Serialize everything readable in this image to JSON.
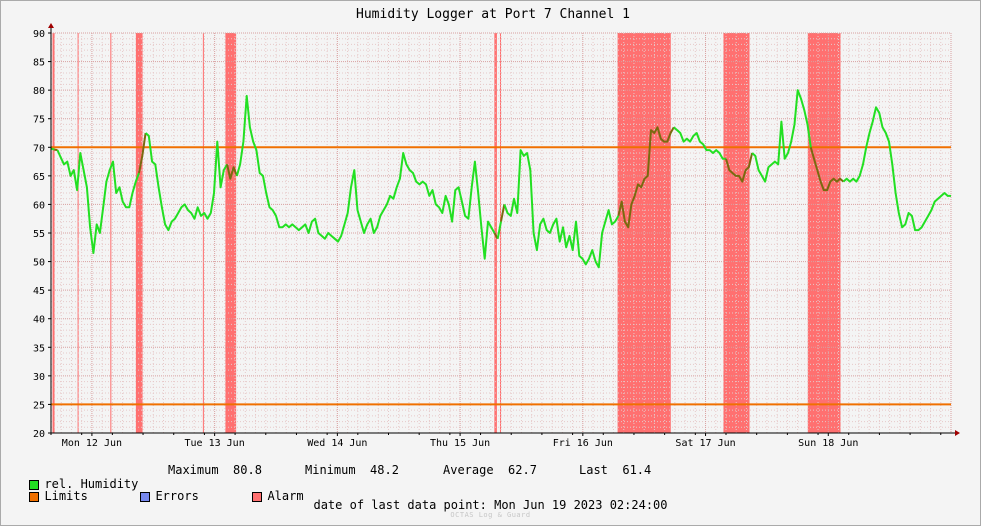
{
  "chart_data": {
    "type": "line",
    "title": "Humidity Logger at Port 7 Channel 1",
    "ylim": [
      20,
      90
    ],
    "y_ticks": [
      20,
      25,
      30,
      35,
      40,
      45,
      50,
      55,
      60,
      65,
      70,
      75,
      80,
      85,
      90
    ],
    "x_range_hours": [
      0,
      176
    ],
    "x_ticks": [
      {
        "label": "Mon 12 Jun",
        "h": 8
      },
      {
        "label": "Tue 13 Jun",
        "h": 32
      },
      {
        "label": "Wed 14 Jun",
        "h": 56
      },
      {
        "label": "Thu 15 Jun",
        "h": 80
      },
      {
        "label": "Fri 16 Jun",
        "h": 104
      },
      {
        "label": "Sat 17 Jun",
        "h": 128
      },
      {
        "label": "Sun 18 Jun",
        "h": 152
      }
    ],
    "grid": true,
    "limits": [
      25,
      70
    ],
    "alarm_periods": [
      [
        0.3,
        0.7
      ],
      [
        5.2,
        5.4
      ],
      [
        11.6,
        11.8
      ],
      [
        16.6,
        17.9
      ],
      [
        29.7,
        29.9
      ],
      [
        34.1,
        36.2
      ],
      [
        86.7,
        87.2
      ],
      [
        87.8,
        88.0
      ],
      [
        110.8,
        121.2
      ],
      [
        131.5,
        136.6
      ],
      [
        148.0,
        154.4
      ]
    ],
    "series": [
      {
        "name": "rel. Humidity",
        "color": "#22e022",
        "alarm_color": "#7a6a10",
        "points": [
          [
            0,
            69.8
          ],
          [
            1,
            69.6
          ],
          [
            2,
            69.5
          ],
          [
            3,
            68.2
          ],
          [
            4,
            67.0
          ],
          [
            5,
            67.5
          ],
          [
            6,
            65.0
          ],
          [
            7,
            66.0
          ],
          [
            8,
            62.5
          ],
          [
            9,
            69.0
          ],
          [
            10,
            66.0
          ],
          [
            11,
            63.0
          ],
          [
            12,
            56.0
          ],
          [
            13,
            51.5
          ],
          [
            14,
            56.5
          ],
          [
            15,
            55.0
          ],
          [
            16,
            59.5
          ],
          [
            17,
            64.0
          ],
          [
            18,
            66.0
          ],
          [
            19,
            67.5
          ],
          [
            20,
            62.0
          ],
          [
            21,
            63.0
          ],
          [
            22,
            60.5
          ],
          [
            23,
            59.5
          ],
          [
            24,
            59.5
          ],
          [
            25,
            62.0
          ],
          [
            26,
            64.0
          ],
          [
            27,
            65.5
          ],
          [
            28,
            68.5
          ],
          [
            29,
            72.5
          ],
          [
            30,
            72.0
          ],
          [
            31,
            67.5
          ],
          [
            32,
            67.0
          ],
          [
            33,
            63.0
          ],
          [
            34,
            59.5
          ],
          [
            35,
            56.5
          ],
          [
            36,
            55.5
          ],
          [
            37,
            57.0
          ],
          [
            38,
            57.5
          ],
          [
            39,
            58.5
          ],
          [
            40,
            59.5
          ],
          [
            41,
            60.0
          ],
          [
            42,
            59.0
          ],
          [
            43,
            58.5
          ],
          [
            44,
            57.5
          ],
          [
            45,
            59.5
          ],
          [
            46,
            58.0
          ],
          [
            47,
            58.5
          ],
          [
            48,
            57.5
          ],
          [
            49,
            58.5
          ],
          [
            50,
            62.0
          ],
          [
            51,
            71.0
          ],
          [
            52,
            63.0
          ],
          [
            53,
            66.0
          ],
          [
            54,
            67.0
          ],
          [
            55,
            64.5
          ],
          [
            56,
            66.5
          ],
          [
            57,
            65.0
          ],
          [
            58,
            67.0
          ],
          [
            59,
            71.0
          ],
          [
            60,
            79.0
          ],
          [
            61,
            73.5
          ],
          [
            62,
            71.0
          ],
          [
            63,
            69.5
          ],
          [
            64,
            65.5
          ],
          [
            65,
            65.0
          ],
          [
            66,
            62.0
          ],
          [
            67,
            59.5
          ],
          [
            68,
            59.0
          ],
          [
            69,
            58.0
          ],
          [
            70,
            56.0
          ],
          [
            71,
            56.0
          ],
          [
            72,
            56.5
          ],
          [
            73,
            56.0
          ],
          [
            74,
            56.5
          ],
          [
            75,
            56.0
          ],
          [
            76,
            55.5
          ],
          [
            77,
            56.0
          ],
          [
            78,
            56.5
          ],
          [
            79,
            55.0
          ],
          [
            80,
            57.0
          ],
          [
            81,
            57.5
          ],
          [
            82,
            55.0
          ],
          [
            83,
            54.5
          ],
          [
            84,
            54.0
          ],
          [
            85,
            55.0
          ],
          [
            86,
            54.5
          ],
          [
            87,
            54.0
          ],
          [
            88,
            53.5
          ],
          [
            89,
            54.5
          ],
          [
            90,
            56.5
          ],
          [
            91,
            58.5
          ],
          [
            92,
            63.0
          ],
          [
            93,
            66.0
          ],
          [
            94,
            59.0
          ],
          [
            95,
            57.0
          ],
          [
            96,
            55.0
          ],
          [
            97,
            56.5
          ],
          [
            98,
            57.5
          ],
          [
            99,
            55.0
          ],
          [
            100,
            56.0
          ],
          [
            101,
            58.0
          ],
          [
            102,
            59.0
          ],
          [
            103,
            60.0
          ],
          [
            104,
            61.5
          ],
          [
            105,
            61.0
          ],
          [
            106,
            63.0
          ],
          [
            107,
            64.5
          ],
          [
            108,
            69.0
          ],
          [
            109,
            67.0
          ],
          [
            110,
            66.0
          ],
          [
            111,
            65.5
          ],
          [
            112,
            64.0
          ],
          [
            113,
            63.5
          ],
          [
            114,
            64.0
          ],
          [
            115,
            63.5
          ],
          [
            116,
            61.5
          ],
          [
            117,
            62.5
          ],
          [
            118,
            60.0
          ],
          [
            119,
            59.5
          ],
          [
            120,
            58.5
          ],
          [
            121,
            61.5
          ],
          [
            122,
            60.0
          ],
          [
            123,
            57.0
          ],
          [
            124,
            62.5
          ],
          [
            125,
            63.0
          ],
          [
            126,
            60.5
          ],
          [
            127,
            58.0
          ],
          [
            128,
            57.5
          ],
          [
            129,
            63.0
          ],
          [
            130,
            67.5
          ],
          [
            131,
            62.0
          ],
          [
            132,
            56.0
          ],
          [
            133,
            50.5
          ],
          [
            134,
            57.0
          ],
          [
            135,
            56.0
          ],
          [
            136,
            55.0
          ],
          [
            137,
            54.0
          ],
          [
            138,
            57.0
          ],
          [
            139,
            60.0
          ],
          [
            140,
            58.5
          ],
          [
            141,
            58.0
          ],
          [
            142,
            61.0
          ],
          [
            143,
            58.5
          ],
          [
            144,
            69.5
          ],
          [
            145,
            68.5
          ],
          [
            146,
            69.0
          ],
          [
            147,
            66.0
          ],
          [
            148,
            55.0
          ],
          [
            149,
            52.0
          ],
          [
            150,
            56.5
          ],
          [
            151,
            57.5
          ],
          [
            152,
            55.5
          ],
          [
            153,
            55.0
          ],
          [
            154,
            56.5
          ],
          [
            155,
            57.5
          ],
          [
            156,
            53.5
          ],
          [
            157,
            56.0
          ],
          [
            158,
            52.5
          ],
          [
            159,
            54.5
          ],
          [
            160,
            52.0
          ],
          [
            161,
            57.0
          ],
          [
            162,
            51.0
          ],
          [
            163,
            50.5
          ],
          [
            164,
            49.5
          ],
          [
            165,
            50.5
          ],
          [
            166,
            52.0
          ],
          [
            167,
            50.0
          ],
          [
            168,
            49.0
          ],
          [
            169,
            55.0
          ],
          [
            170,
            57.0
          ],
          [
            171,
            59.0
          ],
          [
            172,
            56.5
          ],
          [
            173,
            57.0
          ],
          [
            174,
            58.0
          ],
          [
            175,
            60.5
          ],
          [
            176,
            57.0
          ],
          [
            177,
            56.0
          ],
          [
            178,
            60.0
          ],
          [
            179,
            61.5
          ],
          [
            180,
            63.5
          ],
          [
            181,
            63.0
          ],
          [
            182,
            64.5
          ],
          [
            183,
            65.0
          ],
          [
            184,
            73.0
          ],
          [
            185,
            72.5
          ],
          [
            186,
            73.5
          ],
          [
            187,
            71.5
          ],
          [
            188,
            71.0
          ],
          [
            189,
            71.0
          ],
          [
            190,
            72.5
          ],
          [
            191,
            73.5
          ],
          [
            192,
            73.0
          ],
          [
            193,
            72.5
          ],
          [
            194,
            71.0
          ],
          [
            195,
            71.5
          ],
          [
            196,
            71.0
          ],
          [
            197,
            72.0
          ],
          [
            198,
            72.5
          ],
          [
            199,
            71.0
          ],
          [
            200,
            70.5
          ],
          [
            201,
            69.5
          ],
          [
            202,
            69.5
          ],
          [
            203,
            69.0
          ],
          [
            204,
            69.5
          ],
          [
            205,
            69.0
          ],
          [
            206,
            68.0
          ],
          [
            207,
            68.0
          ],
          [
            208,
            66.0
          ],
          [
            209,
            65.5
          ],
          [
            210,
            65.0
          ],
          [
            211,
            65.0
          ],
          [
            212,
            64.0
          ],
          [
            213,
            66.0
          ],
          [
            214,
            66.5
          ],
          [
            215,
            69.0
          ],
          [
            216,
            68.5
          ],
          [
            217,
            66.0
          ],
          [
            218,
            65.0
          ],
          [
            219,
            64.0
          ],
          [
            220,
            66.5
          ],
          [
            221,
            67.0
          ],
          [
            222,
            67.5
          ],
          [
            223,
            67.0
          ],
          [
            224,
            74.5
          ],
          [
            225,
            68.0
          ],
          [
            226,
            69.0
          ],
          [
            227,
            71.0
          ],
          [
            228,
            74.0
          ],
          [
            229,
            80.0
          ],
          [
            230,
            78.5
          ],
          [
            231,
            76.5
          ],
          [
            232,
            74.0
          ],
          [
            233,
            70.0
          ],
          [
            234,
            68.0
          ],
          [
            235,
            66.0
          ],
          [
            236,
            64.0
          ],
          [
            237,
            62.5
          ],
          [
            238,
            62.5
          ],
          [
            239,
            64.0
          ],
          [
            240,
            64.5
          ],
          [
            241,
            64.0
          ],
          [
            242,
            64.5
          ],
          [
            243,
            64.0
          ],
          [
            244,
            64.5
          ],
          [
            245,
            64.0
          ],
          [
            246,
            64.5
          ],
          [
            247,
            64.0
          ],
          [
            248,
            65.0
          ],
          [
            249,
            67.0
          ],
          [
            250,
            70.0
          ],
          [
            251,
            72.5
          ],
          [
            252,
            74.5
          ],
          [
            253,
            77.0
          ],
          [
            254,
            76.0
          ],
          [
            255,
            73.5
          ],
          [
            256,
            72.5
          ],
          [
            257,
            71.0
          ],
          [
            258,
            67.0
          ],
          [
            259,
            62.0
          ],
          [
            260,
            58.5
          ],
          [
            261,
            56.0
          ],
          [
            262,
            56.5
          ],
          [
            263,
            58.5
          ],
          [
            264,
            58.0
          ],
          [
            265,
            55.5
          ],
          [
            266,
            55.5
          ],
          [
            267,
            56.0
          ],
          [
            268,
            57.0
          ],
          [
            269,
            58.0
          ],
          [
            270,
            59.0
          ],
          [
            271,
            60.5
          ],
          [
            272,
            61.0
          ],
          [
            273,
            61.5
          ],
          [
            274,
            62.0
          ],
          [
            275,
            61.5
          ],
          [
            276,
            61.5
          ]
        ]
      }
    ]
  },
  "legend": {
    "humidity_label": "rel. Humidity",
    "limits_label": "Limits",
    "errors_label": "Errors",
    "alarm_label": "Alarm",
    "max_label": "Maximum",
    "max_value": "80.8",
    "min_label": "Minimum",
    "min_value": "48.2",
    "avg_label": "Average",
    "avg_value": "62.7",
    "last_label": "Last",
    "last_value": "61.4",
    "humidity_color": "#22e022",
    "limits_color": "#f07000",
    "errors_color": "#7788ee",
    "alarm_color": "#ff7070"
  },
  "footer": {
    "text": "date of last data point:  Mon Jun 19 2023 02:24:00",
    "watermark": "OCTAS Log & Guard"
  }
}
